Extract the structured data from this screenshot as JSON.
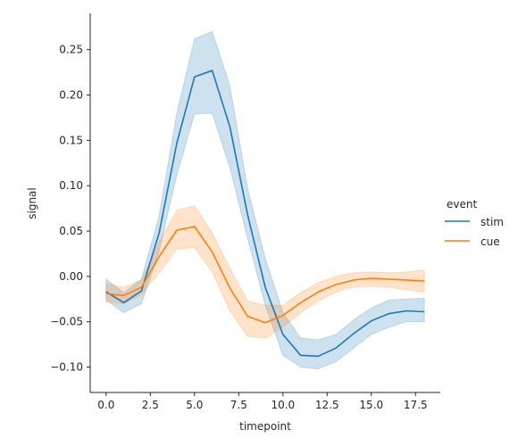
{
  "chart_data": {
    "type": "line",
    "xlabel": "timepoint",
    "ylabel": "signal",
    "xlim": [
      -0.9,
      18.9
    ],
    "ylim": [
      -0.128,
      0.29
    ],
    "xticks": [
      0.0,
      2.5,
      5.0,
      7.5,
      10.0,
      12.5,
      15.0,
      17.5
    ],
    "xtick_labels": [
      "0.0",
      "2.5",
      "5.0",
      "7.5",
      "10.0",
      "12.5",
      "15.0",
      "17.5"
    ],
    "yticks": [
      -0.1,
      -0.05,
      0.0,
      0.05,
      0.1,
      0.15,
      0.2,
      0.25
    ],
    "ytick_labels": [
      "−0.10",
      "−0.05",
      "0.00",
      "0.05",
      "0.10",
      "0.15",
      "0.20",
      "0.25"
    ],
    "legend": {
      "title": "event",
      "placement": "right"
    },
    "x": [
      0,
      1,
      2,
      3,
      4,
      5,
      6,
      7,
      8,
      9,
      10,
      11,
      12,
      13,
      14,
      15,
      16,
      17,
      18
    ],
    "series": [
      {
        "name": "stim",
        "color": "#1f77b4",
        "values": [
          -0.017,
          -0.029,
          -0.016,
          0.048,
          0.147,
          0.22,
          0.227,
          0.165,
          0.068,
          -0.012,
          -0.064,
          -0.087,
          -0.088,
          -0.079,
          -0.063,
          -0.049,
          -0.041,
          -0.038,
          -0.039
        ],
        "ci_low": [
          -0.026,
          -0.04,
          -0.03,
          0.028,
          0.112,
          0.179,
          0.18,
          0.12,
          0.042,
          -0.032,
          -0.087,
          -0.1,
          -0.102,
          -0.094,
          -0.079,
          -0.064,
          -0.056,
          -0.05,
          -0.05
        ],
        "ci_high": [
          -0.003,
          -0.018,
          -0.003,
          0.067,
          0.18,
          0.262,
          0.27,
          0.21,
          0.097,
          0.02,
          -0.04,
          -0.068,
          -0.07,
          -0.064,
          -0.048,
          -0.035,
          -0.026,
          -0.025,
          -0.024
        ]
      },
      {
        "name": "cue",
        "color": "#ff7f0e",
        "values": [
          -0.019,
          -0.021,
          -0.012,
          0.022,
          0.051,
          0.055,
          0.027,
          -0.013,
          -0.044,
          -0.051,
          -0.043,
          -0.029,
          -0.017,
          -0.009,
          -0.004,
          -0.002,
          -0.003,
          -0.004,
          -0.005
        ],
        "ci_low": [
          -0.028,
          -0.03,
          -0.02,
          0.004,
          0.03,
          0.032,
          0.005,
          -0.038,
          -0.066,
          -0.068,
          -0.056,
          -0.04,
          -0.027,
          -0.017,
          -0.012,
          -0.011,
          -0.012,
          -0.015,
          -0.017
        ],
        "ci_high": [
          -0.008,
          -0.012,
          -0.004,
          0.038,
          0.073,
          0.078,
          0.048,
          0.009,
          -0.027,
          -0.032,
          -0.032,
          -0.018,
          -0.007,
          0.0,
          0.004,
          0.005,
          0.004,
          0.005,
          0.007
        ]
      }
    ]
  }
}
